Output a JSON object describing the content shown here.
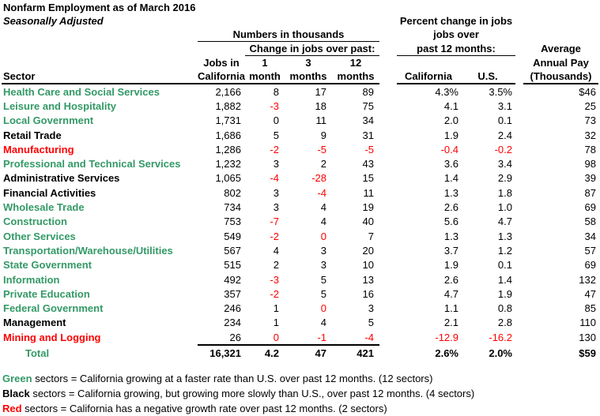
{
  "colors": {
    "green": "#339966",
    "red": "#ff0000",
    "black": "#000000"
  },
  "chart_data": {
    "type": "table",
    "title": "Nonfarm Employment as of March 2016",
    "subtitle": "Seasonally Adjusted",
    "header": {
      "group_numbers": "Numbers in thousands",
      "group_change": "Change in jobs over past:",
      "pct_line1": "Percent change in jobs",
      "pct_line2": "jobs over",
      "pct_line3": "past 12 months:",
      "pay_line1": "Average",
      "pay_line2": "Annual Pay",
      "pay_line3": "(Thousands)",
      "col_sector": "Sector",
      "col_jobs_line1": "Jobs in",
      "col_jobs_line2": "California",
      "col_m1_line1": "1",
      "col_m1_line2": "month",
      "col_m3_line1": "3",
      "col_m3_line2": "months",
      "col_m12_line1": "12",
      "col_m12_line2": "months",
      "col_ca": "California",
      "col_us": "U.S."
    },
    "rows": [
      {
        "sector": "Health Care and Social Services",
        "color": "green",
        "values": [
          "2,166",
          "8",
          "17",
          "89",
          "4.3%",
          "3.5%",
          "$46"
        ],
        "red": [
          0,
          0,
          0,
          0,
          0,
          0,
          0
        ]
      },
      {
        "sector": "Leisure and Hospitality",
        "color": "green",
        "values": [
          "1,882",
          "-3",
          "18",
          "75",
          "4.1",
          "3.1",
          "25"
        ],
        "red": [
          0,
          1,
          0,
          0,
          0,
          0,
          0
        ]
      },
      {
        "sector": "Local Government",
        "color": "green",
        "values": [
          "1,731",
          "0",
          "11",
          "34",
          "2.0",
          "0.1",
          "73"
        ],
        "red": [
          0,
          0,
          0,
          0,
          0,
          0,
          0
        ]
      },
      {
        "sector": "Retail Trade",
        "color": "black",
        "values": [
          "1,686",
          "5",
          "9",
          "31",
          "1.9",
          "2.4",
          "32"
        ],
        "red": [
          0,
          0,
          0,
          0,
          0,
          0,
          0
        ]
      },
      {
        "sector": "Manufacturing",
        "color": "red",
        "values": [
          "1,286",
          "-2",
          "-5",
          "-5",
          "-0.4",
          "-0.2",
          "78"
        ],
        "red": [
          0,
          1,
          1,
          1,
          1,
          1,
          0
        ]
      },
      {
        "sector": "Professional and Technical Services",
        "color": "green",
        "values": [
          "1,232",
          "3",
          "2",
          "43",
          "3.6",
          "3.4",
          "98"
        ],
        "red": [
          0,
          0,
          0,
          0,
          0,
          0,
          0
        ]
      },
      {
        "sector": "Administrative Services",
        "color": "black",
        "values": [
          "1,065",
          "-4",
          "-28",
          "15",
          "1.4",
          "2.9",
          "39"
        ],
        "red": [
          0,
          1,
          1,
          0,
          0,
          0,
          0
        ]
      },
      {
        "sector": "Financial Activities",
        "color": "black",
        "values": [
          "802",
          "3",
          "-4",
          "11",
          "1.3",
          "1.8",
          "87"
        ],
        "red": [
          0,
          0,
          1,
          0,
          0,
          0,
          0
        ]
      },
      {
        "sector": "Wholesale Trade",
        "color": "green",
        "values": [
          "734",
          "3",
          "4",
          "19",
          "2.6",
          "1.0",
          "69"
        ],
        "red": [
          0,
          0,
          0,
          0,
          0,
          0,
          0
        ]
      },
      {
        "sector": "Construction",
        "color": "green",
        "values": [
          "753",
          "-7",
          "4",
          "40",
          "5.6",
          "4.7",
          "58"
        ],
        "red": [
          0,
          1,
          0,
          0,
          0,
          0,
          0
        ]
      },
      {
        "sector": "Other Services",
        "color": "green",
        "values": [
          "549",
          "-2",
          "0",
          "7",
          "1.3",
          "1.3",
          "34"
        ],
        "red": [
          0,
          1,
          1,
          0,
          0,
          0,
          0
        ]
      },
      {
        "sector": "Transportation/Warehouse/Utilities",
        "color": "green",
        "values": [
          "567",
          "4",
          "3",
          "20",
          "3.7",
          "1.2",
          "57"
        ],
        "red": [
          0,
          0,
          0,
          0,
          0,
          0,
          0
        ]
      },
      {
        "sector": "State Government",
        "color": "green",
        "values": [
          "515",
          "2",
          "3",
          "10",
          "1.9",
          "0.1",
          "69"
        ],
        "red": [
          0,
          0,
          0,
          0,
          0,
          0,
          0
        ]
      },
      {
        "sector": "Information",
        "color": "green",
        "values": [
          "492",
          "-3",
          "5",
          "13",
          "2.6",
          "1.4",
          "132"
        ],
        "red": [
          0,
          1,
          0,
          0,
          0,
          0,
          0
        ]
      },
      {
        "sector": "Private Education",
        "color": "green",
        "values": [
          "357",
          "-2",
          "5",
          "16",
          "4.7",
          "1.9",
          "47"
        ],
        "red": [
          0,
          1,
          0,
          0,
          0,
          0,
          0
        ]
      },
      {
        "sector": "Federal Government",
        "color": "green",
        "values": [
          "246",
          "1",
          "0",
          "3",
          "1.1",
          "0.8",
          "85"
        ],
        "red": [
          0,
          0,
          1,
          0,
          0,
          0,
          0
        ]
      },
      {
        "sector": "Management",
        "color": "black",
        "values": [
          "234",
          "1",
          "4",
          "5",
          "2.1",
          "2.8",
          "110"
        ],
        "red": [
          0,
          0,
          0,
          0,
          0,
          0,
          0
        ]
      },
      {
        "sector": "Mining and Logging",
        "color": "red",
        "values": [
          "26",
          "0",
          "-1",
          "-4",
          "-12.9",
          "-16.2",
          "130"
        ],
        "red": [
          0,
          1,
          1,
          1,
          1,
          1,
          0
        ]
      }
    ],
    "total_row": {
      "label": "Total",
      "values": [
        "16,321",
        "4.2",
        "47",
        "421",
        "2.6%",
        "2.0%",
        "$59"
      ]
    },
    "legend": [
      {
        "word": "Green",
        "color": "green",
        "text": " sectors = California growing at a faster rate than U.S. over past 12 months. (12 sectors)"
      },
      {
        "word": "Black",
        "color": "black",
        "text": " sectors = California growing, but growing more slowly than U.S., over past 12 months. (4 sectors)"
      },
      {
        "word": "Red",
        "color": "red",
        "text": " sectors = California has a negative growth rate over past 12 months. (2 sectors)"
      }
    ]
  }
}
